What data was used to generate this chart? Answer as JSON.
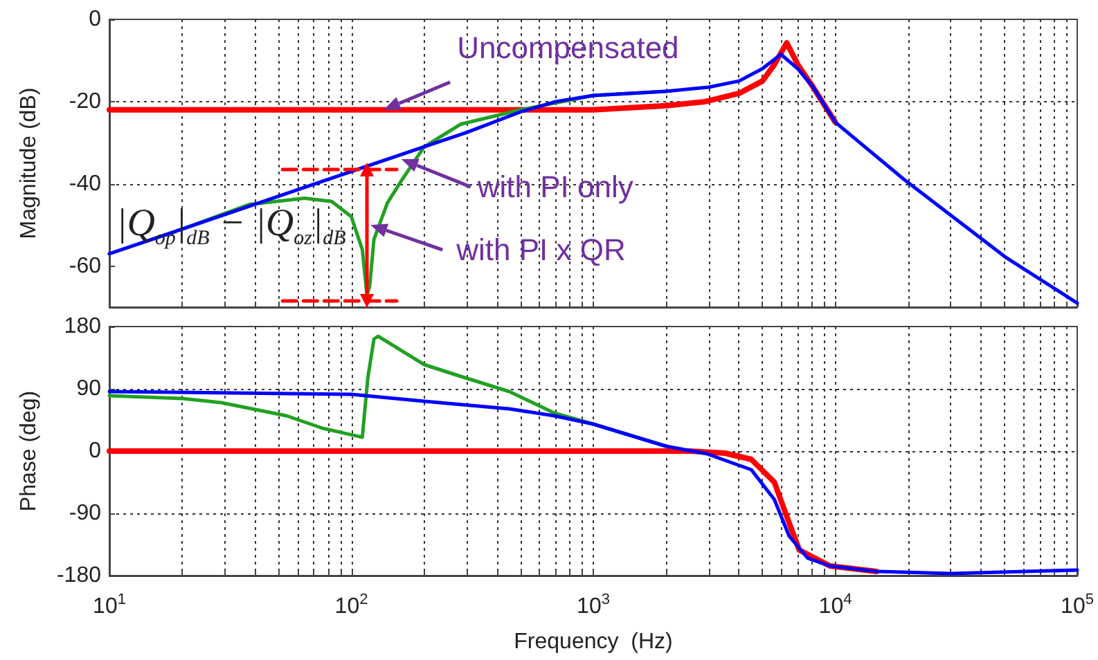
{
  "chart_data": [
    {
      "type": "line",
      "ylabel": "Magnitude (dB)",
      "log": "x",
      "xlim": [
        10,
        100000
      ],
      "ylim": [
        -70,
        0
      ],
      "yticks": [
        -60,
        -40,
        -20,
        0
      ],
      "tick_labels": "y",
      "grid": true,
      "marker": "none",
      "line_style": "solid",
      "xticks": [
        {
          "value": 10,
          "label": null
        },
        {
          "value": 20,
          "label": null
        },
        {
          "value": 30,
          "label": null
        },
        {
          "value": 40,
          "label": null
        },
        {
          "value": 50,
          "label": null
        },
        {
          "value": 60,
          "label": null
        },
        {
          "value": 70,
          "label": null
        },
        {
          "value": 80,
          "label": null
        },
        {
          "value": 90,
          "label": null
        },
        {
          "value": 100,
          "label": null
        },
        {
          "value": 200,
          "label": null
        },
        {
          "value": 300,
          "label": null
        },
        {
          "value": 400,
          "label": null
        },
        {
          "value": 500,
          "label": null
        },
        {
          "value": 600,
          "label": null
        },
        {
          "value": 700,
          "label": null
        },
        {
          "value": 800,
          "label": null
        },
        {
          "value": 900,
          "label": null
        },
        {
          "value": 1000,
          "label": null
        },
        {
          "value": 2000,
          "label": null
        },
        {
          "value": 3000,
          "label": null
        },
        {
          "value": 4000,
          "label": null
        },
        {
          "value": 5000,
          "label": null
        },
        {
          "value": 6000,
          "label": null
        },
        {
          "value": 7000,
          "label": null
        },
        {
          "value": 8000,
          "label": null
        },
        {
          "value": 9000,
          "label": null
        },
        {
          "value": 10000,
          "label": null
        },
        {
          "value": 20000,
          "label": null
        },
        {
          "value": 30000,
          "label": null
        },
        {
          "value": 40000,
          "label": null
        },
        {
          "value": 50000,
          "label": null
        },
        {
          "value": 60000,
          "label": null
        },
        {
          "value": 70000,
          "label": null
        },
        {
          "value": 80000,
          "label": null
        },
        {
          "value": 90000,
          "label": null
        },
        {
          "value": 100000,
          "label": null
        }
      ],
      "series": [
        {
          "color": "#ff0000",
          "x": [
            10,
            100,
            1000,
            2000,
            2900,
            4000,
            5000,
            5600,
            6300,
            7000,
            8100,
            10000
          ],
          "values": [
            -22,
            -22,
            -22,
            -21,
            -20,
            -18,
            -15,
            -11,
            -5.7,
            -11,
            -16.5,
            -25
          ]
        },
        {
          "color": "#22a022",
          "x": [
            10,
            20,
            38,
            64,
            83,
            100,
            111,
            116,
            119,
            124,
            141,
            162,
            200,
            283,
            500,
            1000,
            2000
          ],
          "values": [
            -57,
            -51,
            -45,
            -43.5,
            -44.3,
            -48,
            -56,
            -67,
            -65,
            -53.5,
            -44.6,
            -39,
            -31,
            -25.5,
            -22,
            -18.5,
            -17.5
          ]
        },
        {
          "color": "#0000ff",
          "x": [
            10,
            20,
            50,
            100,
            200,
            300,
            500,
            700,
            1000,
            2000,
            3000,
            4000,
            5000,
            5960,
            7000,
            8100,
            10000,
            19300,
            51000,
            100000
          ],
          "values": [
            -57,
            -51,
            -43,
            -37,
            -31,
            -27.5,
            -22.5,
            -20,
            -18.5,
            -17.5,
            -16.5,
            -15,
            -12,
            -8.5,
            -12,
            -16.5,
            -25,
            -39,
            -58,
            -69
          ]
        },
        {
          "color": "#ff0000",
          "line_style": "dashed",
          "x": [
            52,
            154
          ],
          "values": [
            -36.5,
            -36.5
          ]
        },
        {
          "color": "#ff0000",
          "line_style": "dashed",
          "x": [
            52,
            154
          ],
          "values": [
            -68.5,
            -68.5
          ]
        },
        {
          "color": "#ff0000",
          "marker": "triangle",
          "x": [
            116,
            116
          ],
          "values": [
            -36.5,
            -68.5
          ]
        }
      ],
      "annotations": [
        {
          "text": "Uncompensated",
          "x": 136,
          "y": -22
        },
        {
          "text": "with PI only",
          "x": 161,
          "y": -34
        },
        {
          "text": "with PI x QR",
          "x": 120,
          "y": -50
        },
        "|Q$_{op}$|$_{dB}$ − |Q$_{oz}$|$_{dB}$"
      ]
    },
    {
      "type": "line",
      "ylabel": "Phase (deg)",
      "xlabel": "Frequency  (Hz)",
      "log": "x",
      "xlim": [
        10,
        100000
      ],
      "ylim": [
        -180,
        180
      ],
      "yticks": [
        -180,
        -90,
        0,
        90,
        180
      ],
      "grid": true,
      "marker": "none",
      "line_style": "solid",
      "xticks": [
        {
          "value": 10,
          "label": "10$^{1}$"
        },
        {
          "value": 20,
          "label": null
        },
        {
          "value": 30,
          "label": null
        },
        {
          "value": 40,
          "label": null
        },
        {
          "value": 50,
          "label": null
        },
        {
          "value": 60,
          "label": null
        },
        {
          "value": 70,
          "label": null
        },
        {
          "value": 80,
          "label": null
        },
        {
          "value": 90,
          "label": null
        },
        {
          "value": 100,
          "label": "10$^{2}$"
        },
        {
          "value": 200,
          "label": null
        },
        {
          "value": 300,
          "label": null
        },
        {
          "value": 400,
          "label": null
        },
        {
          "value": 500,
          "label": null
        },
        {
          "value": 600,
          "label": null
        },
        {
          "value": 700,
          "label": null
        },
        {
          "value": 800,
          "label": null
        },
        {
          "value": 900,
          "label": null
        },
        {
          "value": 1000,
          "label": "10$^{3}$"
        },
        {
          "value": 2000,
          "label": null
        },
        {
          "value": 3000,
          "label": null
        },
        {
          "value": 4000,
          "label": null
        },
        {
          "value": 5000,
          "label": null
        },
        {
          "value": 6000,
          "label": null
        },
        {
          "value": 7000,
          "label": null
        },
        {
          "value": 8000,
          "label": null
        },
        {
          "value": 9000,
          "label": null
        },
        {
          "value": 10000,
          "label": "10$^{4}$"
        },
        {
          "value": 20000,
          "label": null
        },
        {
          "value": 30000,
          "label": null
        },
        {
          "value": 40000,
          "label": null
        },
        {
          "value": 50000,
          "label": null
        },
        {
          "value": 60000,
          "label": null
        },
        {
          "value": 70000,
          "label": null
        },
        {
          "value": 80000,
          "label": null
        },
        {
          "value": 90000,
          "label": null
        },
        {
          "value": 100000,
          "label": "10$^{5}$"
        }
      ],
      "series": [
        {
          "color": "#ff0000",
          "x": [
            10,
            1000,
            2500,
            3500,
            4500,
            5600,
            6450,
            7100,
            9500,
            14800
          ],
          "values": [
            0,
            0,
            0,
            -3,
            -12,
            -45,
            -104,
            -143,
            -166,
            -174
          ]
        },
        {
          "color": "#22a022",
          "x": [
            10,
            20,
            29,
            54,
            76,
            111,
            117,
            124,
            129,
            200,
            283,
            450,
            690,
            1000,
            2000
          ],
          "values": [
            80,
            76,
            70,
            51,
            33,
            20,
            106,
            162,
            166,
            125,
            108,
            86,
            55,
            39,
            7
          ]
        },
        {
          "color": "#0000ff",
          "x": [
            10,
            100,
            200,
            450,
            690,
            1000,
            2000,
            2950,
            4500,
            5600,
            6450,
            7700,
            9500,
            14800,
            30000,
            100000
          ],
          "values": [
            86,
            82,
            72,
            61,
            51,
            39,
            7,
            -4,
            -27,
            -70,
            -123,
            -155,
            -166,
            -174,
            -177,
            -172
          ]
        }
      ]
    }
  ]
}
